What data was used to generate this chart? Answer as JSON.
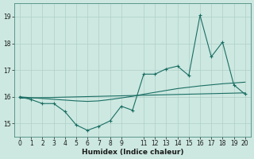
{
  "title": "",
  "xlabel": "Humidex (Indice chaleur)",
  "background_color": "#cce8e0",
  "grid_color": "#b0cfc8",
  "line_color": "#1a6e64",
  "x_data": [
    0,
    1,
    2,
    3,
    4,
    5,
    6,
    7,
    8,
    9,
    10,
    11,
    12,
    13,
    14,
    15,
    16,
    17,
    18,
    19,
    20
  ],
  "y_main": [
    16.0,
    15.9,
    15.75,
    15.75,
    15.45,
    14.95,
    14.75,
    14.9,
    15.1,
    15.65,
    15.5,
    16.85,
    16.85,
    17.05,
    17.15,
    16.8,
    19.05,
    17.5,
    18.05,
    16.45,
    16.1
  ],
  "y_trend1": [
    16.0,
    15.97,
    15.94,
    15.91,
    15.88,
    15.85,
    15.83,
    15.85,
    15.9,
    15.96,
    16.02,
    16.1,
    16.17,
    16.24,
    16.31,
    16.36,
    16.41,
    16.45,
    16.49,
    16.52,
    16.55
  ],
  "y_trend2": [
    15.95,
    15.96,
    15.97,
    15.98,
    15.99,
    16.0,
    16.01,
    16.02,
    16.03,
    16.04,
    16.05,
    16.06,
    16.07,
    16.08,
    16.09,
    16.1,
    16.11,
    16.12,
    16.13,
    16.14,
    16.15
  ],
  "ylim": [
    14.5,
    19.5
  ],
  "xlim": [
    -0.5,
    20.5
  ],
  "yticks": [
    15,
    16,
    17,
    18,
    19
  ],
  "xtick_locs": [
    0,
    1,
    2,
    3,
    4,
    5,
    6,
    7,
    8,
    9,
    11,
    12,
    13,
    14,
    15,
    16,
    17,
    18,
    19,
    20
  ],
  "xtick_labels": [
    "0",
    "1",
    "2",
    "3",
    "4",
    "5",
    "6",
    "7",
    "8",
    "9",
    "11",
    "12",
    "13",
    "14",
    "15",
    "16",
    "17",
    "18",
    "19",
    "20"
  ]
}
